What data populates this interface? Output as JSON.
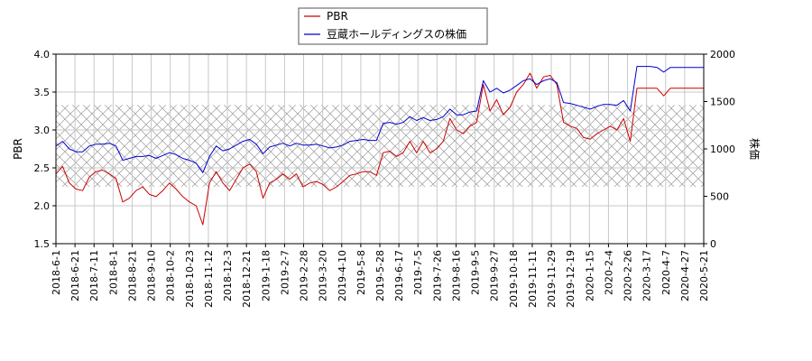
{
  "chart_data": {
    "type": "line",
    "legend": {
      "placement": "top-center",
      "entries": [
        "PBR",
        "豆蔵ホールディングスの株価"
      ]
    },
    "left_axis": {
      "label": "PBR",
      "range": [
        1.5,
        4.0
      ],
      "ticks": [
        "1.5",
        "2.0",
        "2.5",
        "3.0",
        "3.5",
        "4.0"
      ]
    },
    "right_axis": {
      "label": "株価",
      "range": [
        0,
        2000
      ],
      "ticks": [
        "0",
        "500",
        "1000",
        "1500",
        "2000"
      ]
    },
    "grid": true,
    "shaded_band": {
      "axis": "left",
      "range": [
        2.25,
        3.33
      ],
      "pattern": "crosshatch"
    },
    "x_ticks": [
      "2018-6-1",
      "2018-6-21",
      "2018-7-11",
      "2018-8-1",
      "2018-8-21",
      "2018-9-10",
      "2018-10-2",
      "2018-10-23",
      "2018-11-12",
      "2018-12-3",
      "2018-12-21",
      "2019-1-18",
      "2019-2-7",
      "2019-2-28",
      "2019-3-20",
      "2019-4-10",
      "2019-5-8",
      "2019-5-28",
      "2019-6-17",
      "2019-7-5",
      "2019-7-26",
      "2019-8-16",
      "2019-9-5",
      "2019-9-27",
      "2019-10-18",
      "2019-11-11",
      "2019-11-29",
      "2019-12-19",
      "2020-1-15",
      "2020-2-4",
      "2020-2-26",
      "2020-3-17",
      "2020-4-7",
      "2020-4-27",
      "2020-5-21"
    ],
    "series": [
      {
        "name": "PBR",
        "color": "#cc0000",
        "axis": "left",
        "values": [
          2.42,
          2.52,
          2.3,
          2.22,
          2.2,
          2.38,
          2.45,
          2.47,
          2.42,
          2.36,
          2.05,
          2.1,
          2.2,
          2.25,
          2.15,
          2.12,
          2.2,
          2.3,
          2.22,
          2.12,
          2.05,
          2.0,
          1.75,
          2.3,
          2.45,
          2.3,
          2.2,
          2.35,
          2.5,
          2.55,
          2.45,
          2.1,
          2.3,
          2.35,
          2.42,
          2.35,
          2.42,
          2.25,
          2.3,
          2.32,
          2.28,
          2.2,
          2.25,
          2.32,
          2.4,
          2.42,
          2.45,
          2.45,
          2.4,
          2.7,
          2.72,
          2.65,
          2.7,
          2.85,
          2.7,
          2.85,
          2.7,
          2.75,
          2.85,
          3.15,
          3.0,
          2.95,
          3.05,
          3.1,
          3.6,
          3.25,
          3.4,
          3.2,
          3.3,
          3.5,
          3.6,
          3.75,
          3.55,
          3.7,
          3.72,
          3.6,
          3.1,
          3.05,
          3.02,
          2.9,
          2.88,
          2.95,
          3.0,
          3.05,
          3.0,
          3.15,
          2.85,
          3.55,
          3.55,
          3.55,
          3.55,
          3.45,
          3.55,
          3.55,
          3.55,
          3.55,
          3.55,
          3.55
        ]
      },
      {
        "name": "豆蔵ホールディングスの株価",
        "color": "#0000cc",
        "axis": "right",
        "values": [
          1030,
          1080,
          1000,
          970,
          970,
          1030,
          1050,
          1050,
          1060,
          1030,
          880,
          900,
          920,
          920,
          930,
          900,
          930,
          960,
          940,
          900,
          880,
          850,
          750,
          920,
          1030,
          980,
          1000,
          1040,
          1080,
          1100,
          1050,
          950,
          1020,
          1040,
          1060,
          1030,
          1060,
          1040,
          1040,
          1050,
          1030,
          1010,
          1020,
          1040,
          1080,
          1090,
          1100,
          1090,
          1090,
          1270,
          1280,
          1260,
          1280,
          1340,
          1300,
          1330,
          1300,
          1310,
          1340,
          1420,
          1360,
          1360,
          1390,
          1400,
          1720,
          1600,
          1640,
          1590,
          1620,
          1670,
          1720,
          1740,
          1680,
          1720,
          1740,
          1700,
          1490,
          1480,
          1460,
          1440,
          1420,
          1450,
          1470,
          1470,
          1460,
          1510,
          1400,
          1870,
          1870,
          1870,
          1860,
          1810,
          1860,
          1860,
          1860,
          1860,
          1860,
          1860
        ]
      }
    ]
  }
}
